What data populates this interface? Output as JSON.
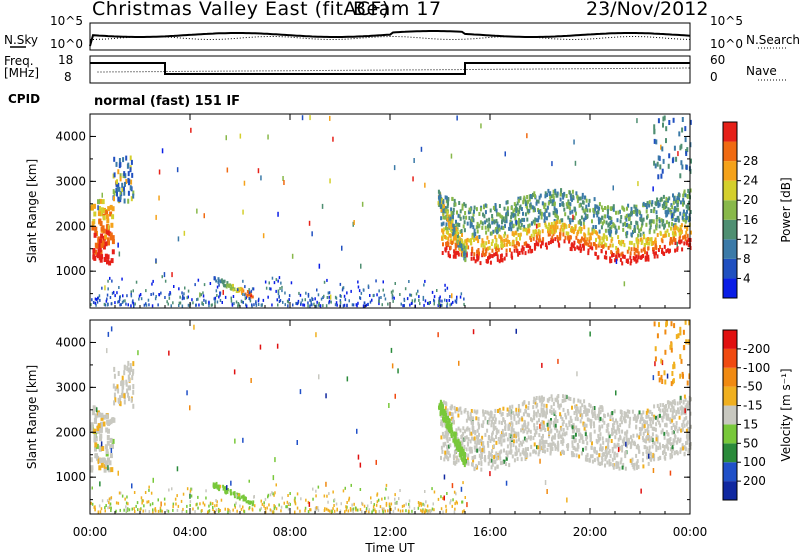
{
  "title": "Christmas Valley East (fitACF)",
  "beam": "Beam 17",
  "date": "23/Nov/2012",
  "top_panels": {
    "noise": {
      "left_label": "N.Sky",
      "right_label": "N.Search",
      "left_ticks": [
        "10^5",
        "10^0"
      ],
      "right_ticks": [
        "10^5",
        "10^0"
      ]
    },
    "freq": {
      "left_label_1": "Freq.",
      "left_label_2": "[MHz]",
      "right_label": "Nave",
      "left_ticks": [
        "18",
        "8"
      ],
      "right_ticks": [
        "60",
        "0"
      ]
    },
    "cpid": {
      "label": "CPID",
      "text": "normal (fast) 151 IF"
    }
  },
  "chart_data": [
    {
      "type": "heatmap",
      "panel": "power",
      "ylabel": "Slant Range [km]",
      "ylim": [
        180,
        4500
      ],
      "yticks": [
        1000,
        2000,
        3000,
        4000
      ],
      "xlim_hours": [
        0,
        24
      ],
      "colorbar": {
        "label": "Power [dB]",
        "ticks": [
          "4",
          "8",
          "12",
          "16",
          "20",
          "24",
          "28"
        ],
        "colors": [
          "#0a1ee6",
          "#2050c0",
          "#3b7aa8",
          "#4f8f72",
          "#88b84a",
          "#d4cf2c",
          "#f5a21a",
          "#f06a12",
          "#e62018"
        ]
      }
    },
    {
      "type": "heatmap",
      "panel": "velocity",
      "ylabel": "Slant Range [km]",
      "ylim": [
        180,
        4500
      ],
      "yticks": [
        1000,
        2000,
        3000,
        4000
      ],
      "xlim_hours": [
        0,
        24
      ],
      "xlabel": "Time UT",
      "xtick_labels": [
        "00:00",
        "04:00",
        "08:00",
        "12:00",
        "16:00",
        "20:00",
        "00:00"
      ],
      "colorbar": {
        "label": "Velocity [m s⁻¹]",
        "ticks": [
          "200",
          "100",
          "50",
          "15",
          "-15",
          "-50",
          "-100",
          "-200"
        ],
        "colors": [
          "#1028a0",
          "#2050c8",
          "#2a8a3a",
          "#78c83a",
          "#c8c8c0",
          "#f0b020",
          "#f08a12",
          "#f04a10",
          "#e01010"
        ]
      }
    }
  ]
}
